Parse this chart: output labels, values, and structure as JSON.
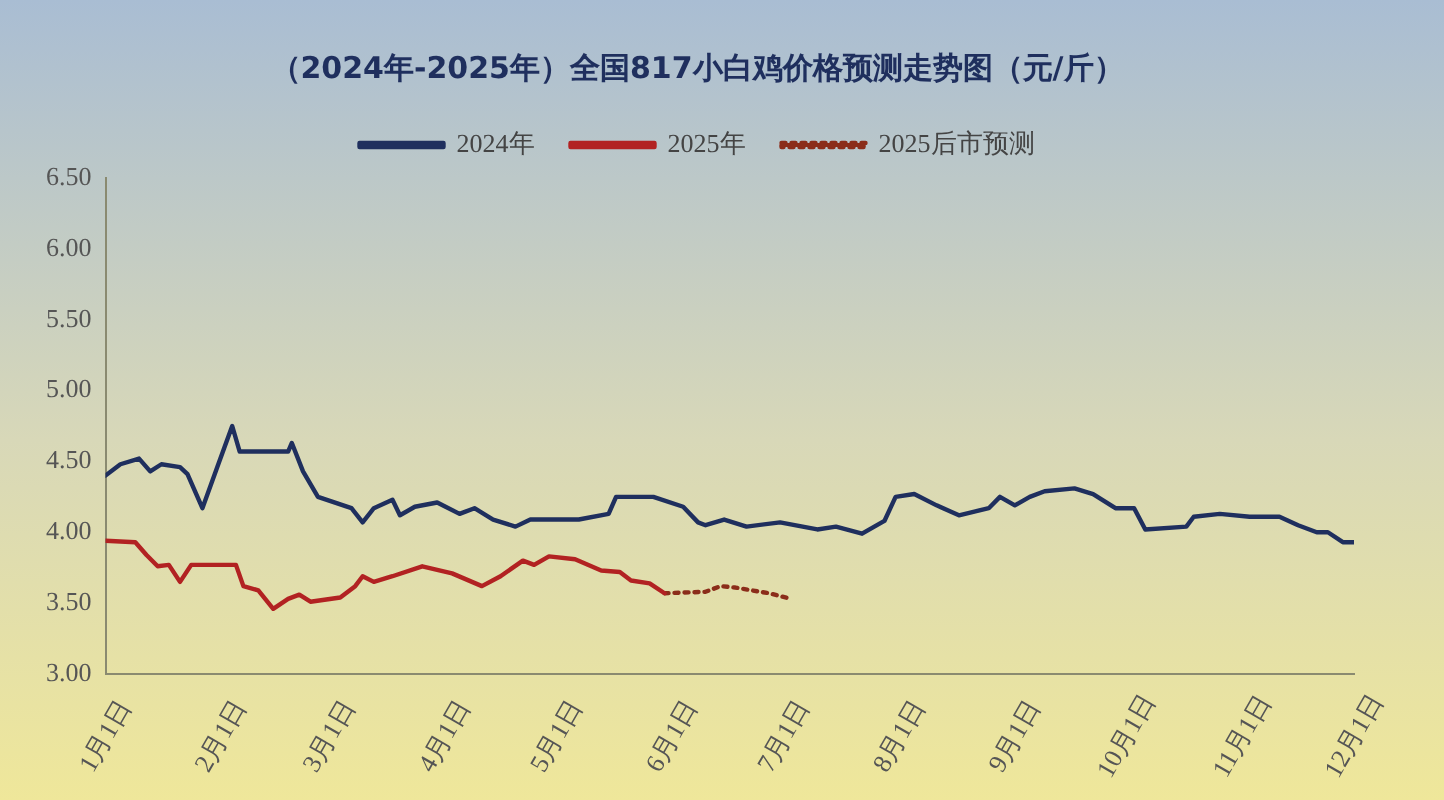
{
  "chart_data": {
    "type": "line",
    "title": "（2024年-2025年）全国817小白鸡价格预测走势图（元/斤）",
    "xlim": [
      "--01-01",
      "--12-01"
    ],
    "xticks": [
      {
        "value": "--01-01",
        "label": "1月1日"
      },
      {
        "value": "--02-01",
        "label": "2月1日"
      },
      {
        "value": "--03-01",
        "label": "3月1日"
      },
      {
        "value": "--04-01",
        "label": "4月1日"
      },
      {
        "value": "--05-01",
        "label": "5月1日"
      },
      {
        "value": "--06-01",
        "label": "6月1日"
      },
      {
        "value": "--07-01",
        "label": "7月1日"
      },
      {
        "value": "--08-01",
        "label": "8月1日"
      },
      {
        "value": "--09-01",
        "label": "9月1日"
      },
      {
        "value": "--10-01",
        "label": "10月1日"
      },
      {
        "value": "--11-01",
        "label": "11月1日"
      },
      {
        "value": "--12-01",
        "label": "12月1日"
      }
    ],
    "ylim": [
      3,
      6.5
    ],
    "yticks": [
      {
        "value": 3,
        "label": "3.00"
      },
      {
        "value": 3.5,
        "label": "3.50"
      },
      {
        "value": 4,
        "label": "4.00"
      },
      {
        "value": 4.5,
        "label": "4.50"
      },
      {
        "value": 5,
        "label": "5.00"
      },
      {
        "value": 5.5,
        "label": "5.50"
      },
      {
        "value": 6,
        "label": "6.00"
      },
      {
        "value": 6.5,
        "label": "6.50"
      }
    ],
    "grid": false,
    "legend": "top",
    "marker": "none",
    "series": [
      {
        "name": "2024年",
        "color": "#1f2f5e",
        "line_style": "solid",
        "x": [
          "--01-01",
          "--01-05",
          "--01-10",
          "--01-13",
          "--01-16",
          "--01-21",
          "--01-23",
          "--01-27",
          "--01-31",
          "--02-04",
          "--02-06",
          "--02-19",
          "--02-20",
          "--02-23",
          "--02-27",
          "--03-07",
          "--03-10",
          "--03-13",
          "--03-18",
          "--03-20",
          "--03-24",
          "--03-30",
          "--04-05",
          "--04-09",
          "--04-14",
          "--04-20",
          "--04-24",
          "--05-07",
          "--05-15",
          "--05-17",
          "--05-27",
          "--06-04",
          "--06-08",
          "--06-10",
          "--06-15",
          "--06-21",
          "--06-30",
          "--07-10",
          "--07-15",
          "--07-22",
          "--07-28",
          "--07-31",
          "--08-05",
          "--08-11",
          "--08-17",
          "--08-25",
          "--08-28",
          "--09-01",
          "--09-05",
          "--09-09",
          "--09-17",
          "--09-22",
          "--09-28",
          "--10-03",
          "--10-06",
          "--10-17",
          "--10-19",
          "--10-26",
          "--11-03",
          "--11-11",
          "--11-16",
          "--11-21",
          "--11-24",
          "--11-28",
          "--12-01"
        ],
        "values": [
          4.4,
          4.48,
          4.52,
          4.43,
          4.48,
          4.46,
          4.41,
          4.17,
          4.46,
          4.75,
          4.57,
          4.57,
          4.63,
          4.43,
          4.25,
          4.17,
          4.07,
          4.17,
          4.23,
          4.12,
          4.18,
          4.21,
          4.13,
          4.17,
          4.09,
          4.04,
          4.09,
          4.09,
          4.13,
          4.25,
          4.25,
          4.18,
          4.07,
          4.05,
          4.09,
          4.04,
          4.07,
          4.02,
          4.04,
          3.99,
          4.08,
          4.25,
          4.27,
          4.19,
          4.12,
          4.17,
          4.25,
          4.19,
          4.25,
          4.29,
          4.31,
          4.27,
          4.17,
          4.17,
          4.02,
          4.04,
          4.11,
          4.13,
          4.11,
          4.11,
          4.05,
          4,
          4,
          3.93,
          3.93
        ]
      },
      {
        "name": "2025年",
        "color": "#b22222",
        "line_style": "solid",
        "x": [
          "--01-01",
          "--01-09",
          "--01-12",
          "--01-15",
          "--01-18",
          "--01-21",
          "--01-24",
          "--02-05",
          "--02-07",
          "--02-11",
          "--02-15",
          "--02-19",
          "--02-22",
          "--02-25",
          "--03-04",
          "--03-08",
          "--03-10",
          "--03-13",
          "--03-18",
          "--03-26",
          "--04-03",
          "--04-11",
          "--04-16",
          "--04-22",
          "--04-25",
          "--04-29",
          "--05-06",
          "--05-13",
          "--05-18",
          "--05-21",
          "--05-26",
          "--05-30"
        ],
        "values": [
          3.94,
          3.93,
          3.84,
          3.76,
          3.77,
          3.65,
          3.77,
          3.77,
          3.62,
          3.59,
          3.46,
          3.53,
          3.56,
          3.51,
          3.54,
          3.62,
          3.69,
          3.65,
          3.69,
          3.76,
          3.71,
          3.62,
          3.69,
          3.8,
          3.77,
          3.83,
          3.81,
          3.73,
          3.72,
          3.66,
          3.64,
          3.57
        ]
      },
      {
        "name": "2025后市预测",
        "color": "#8b2d1a",
        "line_style": "dotted",
        "x": [
          "--05-30",
          "--06-10",
          "--06-14",
          "--06-18",
          "--06-27",
          "--07-03"
        ],
        "values": [
          3.57,
          3.58,
          3.62,
          3.61,
          3.57,
          3.53
        ]
      }
    ]
  }
}
